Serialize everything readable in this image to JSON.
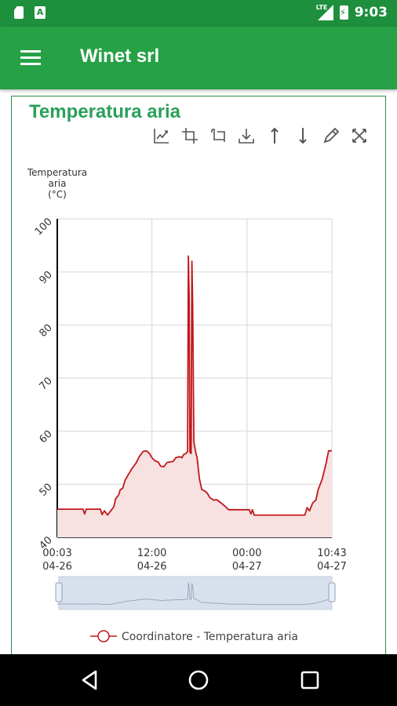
{
  "status_bar": {
    "time": "9:03",
    "network": "LTE"
  },
  "app_bar": {
    "title": "Winet srl",
    "menu_icon": "hamburger-menu-icon"
  },
  "card": {
    "title": "Temperatura aria"
  },
  "toolbar": {
    "icons": [
      "autoscale-icon",
      "zoom-in-icon",
      "zoom-out-icon",
      "download-icon",
      "pan-up-icon",
      "pan-down-icon",
      "edit-icon",
      "reset-axes-icon"
    ]
  },
  "nav_bar": {
    "icons": [
      "back-icon",
      "home-icon",
      "recents-icon"
    ]
  },
  "colors": {
    "primary_dark": "#1e8f3d",
    "primary": "#26a146",
    "title_green": "#2aa05a",
    "series": "#c0171b",
    "series_fill": "#f7e1e1"
  },
  "chart_data": {
    "type": "area",
    "ylabel": "Temperatura\naria\n(°C)",
    "ylim": [
      40,
      100
    ],
    "yticks": [
      40,
      50,
      60,
      70,
      80,
      90,
      100
    ],
    "xlim_hours": [
      0.05,
      34.72
    ],
    "xticks": [
      {
        "hours": 0.05,
        "time": "00:03",
        "date": "04-26"
      },
      {
        "hours": 12,
        "time": "12:00",
        "date": "04-26"
      },
      {
        "hours": 24,
        "time": "00:00",
        "date": "04-27"
      },
      {
        "hours": 34.72,
        "time": "10:43",
        "date": "04-27"
      }
    ],
    "legend": {
      "position": "bottom",
      "label": "Coordinatore - Temperatura aria"
    },
    "series": [
      {
        "name": "Coordinatore - Temperatura aria",
        "points": [
          [
            0.05,
            45.3
          ],
          [
            3.3,
            45.3
          ],
          [
            3.5,
            44.4
          ],
          [
            3.7,
            45.3
          ],
          [
            5.5,
            45.3
          ],
          [
            5.7,
            44.3
          ],
          [
            6.0,
            45.0
          ],
          [
            6.4,
            44.2
          ],
          [
            6.8,
            45.0
          ],
          [
            7.2,
            45.8
          ],
          [
            7.4,
            47.2
          ],
          [
            7.8,
            48.0
          ],
          [
            8.0,
            49.0
          ],
          [
            8.3,
            49.2
          ],
          [
            8.6,
            50.7
          ],
          [
            9.0,
            51.8
          ],
          [
            9.5,
            53.0
          ],
          [
            10.0,
            54.0
          ],
          [
            10.4,
            55.2
          ],
          [
            10.9,
            56.2
          ],
          [
            11.3,
            56.3
          ],
          [
            11.7,
            55.8
          ],
          [
            12.0,
            55.0
          ],
          [
            12.4,
            54.4
          ],
          [
            12.8,
            54.2
          ],
          [
            13.1,
            53.4
          ],
          [
            13.5,
            53.3
          ],
          [
            13.9,
            54.1
          ],
          [
            14.3,
            54.2
          ],
          [
            14.7,
            54.3
          ],
          [
            15.0,
            55.0
          ],
          [
            15.5,
            55.2
          ],
          [
            15.8,
            55.0
          ],
          [
            16.0,
            55.6
          ],
          [
            16.3,
            55.8
          ],
          [
            16.5,
            56.2
          ],
          [
            16.6,
            93.0
          ],
          [
            16.7,
            85.0
          ],
          [
            16.8,
            56.0
          ],
          [
            16.95,
            55.8
          ],
          [
            17.05,
            92.0
          ],
          [
            17.15,
            83.5
          ],
          [
            17.3,
            58.0
          ],
          [
            17.5,
            56.2
          ],
          [
            17.7,
            55.0
          ],
          [
            18.0,
            51.0
          ],
          [
            18.3,
            49.0
          ],
          [
            18.7,
            48.7
          ],
          [
            19.0,
            48.3
          ],
          [
            19.3,
            47.5
          ],
          [
            19.8,
            47.0
          ],
          [
            20.2,
            47.1
          ],
          [
            20.7,
            46.5
          ],
          [
            21.2,
            45.9
          ],
          [
            21.7,
            45.2
          ],
          [
            23.0,
            45.2
          ],
          [
            24.3,
            45.2
          ],
          [
            24.5,
            44.4
          ],
          [
            24.7,
            45.2
          ],
          [
            24.9,
            44.2
          ],
          [
            27.5,
            44.2
          ],
          [
            30.5,
            44.2
          ],
          [
            31.3,
            44.2
          ],
          [
            31.6,
            45.6
          ],
          [
            31.9,
            45.0
          ],
          [
            32.3,
            46.5
          ],
          [
            32.7,
            47.0
          ],
          [
            33.0,
            49.0
          ],
          [
            33.5,
            51.0
          ],
          [
            34.0,
            54.0
          ],
          [
            34.3,
            56.3
          ],
          [
            34.72,
            56.3
          ]
        ]
      }
    ]
  }
}
